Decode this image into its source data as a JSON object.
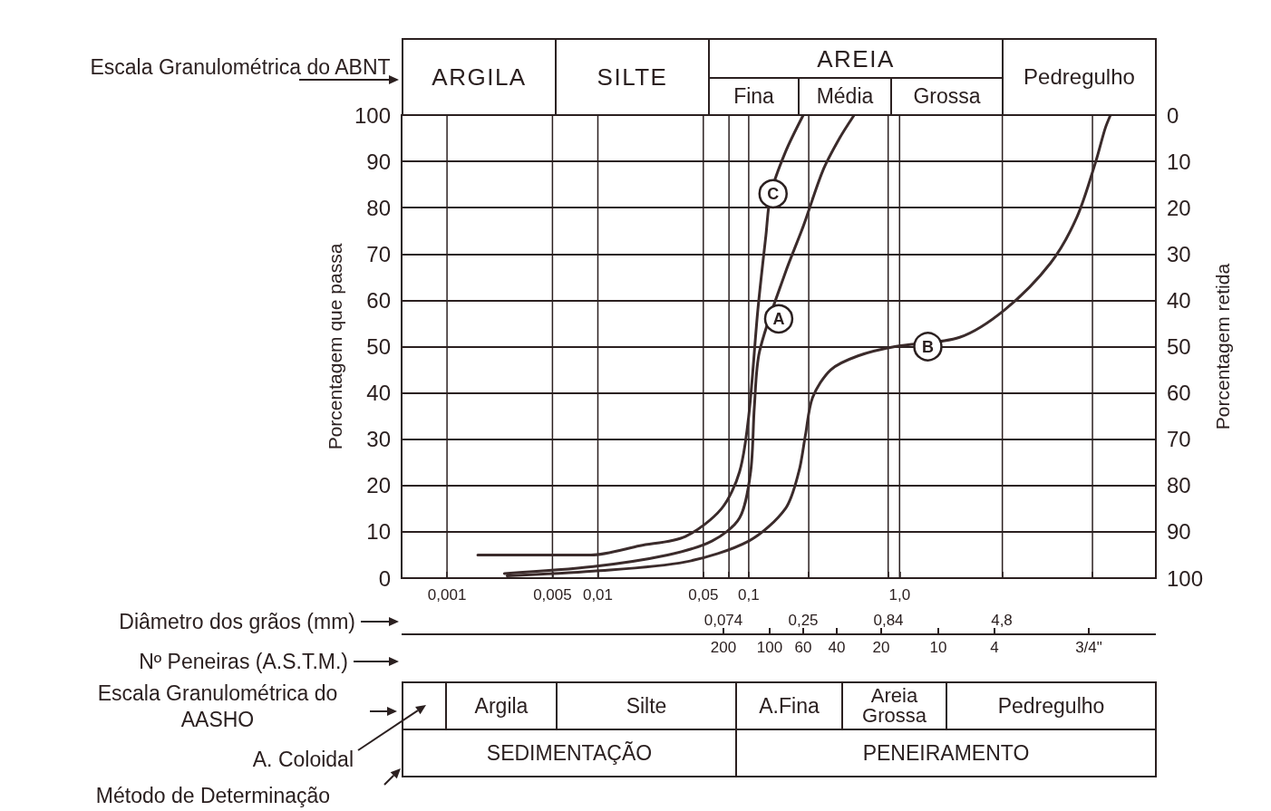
{
  "chart_data": [
    {
      "type": "line",
      "xlabel": "Diâmetro dos grãos (mm)",
      "ylabel": "Porcentagem que passa",
      "y2label": "Porcentagem retida",
      "log": "x",
      "grid": true,
      "marker": "none",
      "xlim": [
        0.0005,
        50
      ],
      "xticks": [
        {
          "value": 0.001,
          "label": "0,001"
        },
        {
          "value": 0.005,
          "label": "0,005"
        },
        {
          "value": 0.01,
          "label": "0,01"
        },
        {
          "value": 0.05,
          "label": "0,05"
        },
        {
          "value": 0.074,
          "label": null
        },
        {
          "value": 0.1,
          "label": "0,1"
        },
        {
          "value": 0.25,
          "label": null
        },
        {
          "value": 0.84,
          "label": null
        },
        {
          "value": 1,
          "label": "1,0"
        },
        {
          "value": 4.8,
          "label": null
        },
        {
          "value": 19,
          "label": null
        }
      ],
      "ylim": [
        0,
        100
      ],
      "yticks": [
        0,
        10,
        20,
        30,
        40,
        50,
        60,
        70,
        80,
        90,
        100
      ],
      "y2lim": [
        100,
        0
      ],
      "y2ticks": [
        0,
        10,
        20,
        30,
        40,
        50,
        60,
        70,
        80,
        90,
        100
      ],
      "series": [
        {
          "color": "#3b2b2b",
          "x": [
            0.0024,
            0.0093,
            0.029,
            0.057,
            0.087,
            0.103,
            0.109,
            0.118,
            0.175,
            0.23,
            0.31,
            0.4,
            0.5
          ],
          "values": [
            1,
            2.5,
            5,
            8,
            13,
            23,
            37,
            49,
            66,
            76,
            88,
            95,
            100
          ]
        },
        {
          "color": "#3b2b2b",
          "x": [
            0.0025,
            0.0093,
            0.038,
            0.1,
            0.175,
            0.215,
            0.238,
            0.265,
            0.35,
            0.53,
            0.93,
            2.5,
            5,
            10,
            15,
            20,
            23,
            25
          ],
          "values": [
            0.5,
            1.5,
            3.5,
            8,
            15,
            23,
            31,
            39,
            45,
            48,
            50,
            52,
            58,
            68,
            78,
            90,
            97,
            100
          ]
        },
        {
          "color": "#3b2b2b",
          "x": [
            0.0016,
            0.009,
            0.019,
            0.038,
            0.066,
            0.087,
            0.1,
            0.115,
            0.13,
            0.14,
            0.175,
            0.23
          ],
          "values": [
            5,
            5,
            7,
            9,
            15,
            23,
            35,
            58,
            74,
            83,
            92,
            100
          ]
        }
      ],
      "annotations": [
        {
          "text": "A",
          "x": 0.158,
          "y": 56
        },
        {
          "text": "B",
          "x": 1.54,
          "y": 50
        },
        {
          "text": "C",
          "x": 0.145,
          "y": 83
        }
      ]
    },
    {
      "type": "other",
      "annotations": [
        "Escala Granulométrica do ABNT",
        "ARGILA",
        "SILTE",
        "AREIA",
        "Fina",
        "Média",
        "Grossa",
        "Pedregulho",
        "Escala Granulométrica do AASHO",
        "Argila",
        "Silte",
        "A.Fina",
        "Areia Grossa",
        "Pedregulho",
        "A. Coloidal",
        "Método de Determinação",
        "SEDIMENTAÇÃO",
        "PENEIRAMENTO",
        "Nº Peneiras (A.S.T.M.)",
        "200",
        "100",
        "60",
        "40",
        "20",
        "10",
        "4",
        "3/4\"",
        "0,074",
        "0,25",
        "0,84",
        "4,8"
      ]
    }
  ]
}
